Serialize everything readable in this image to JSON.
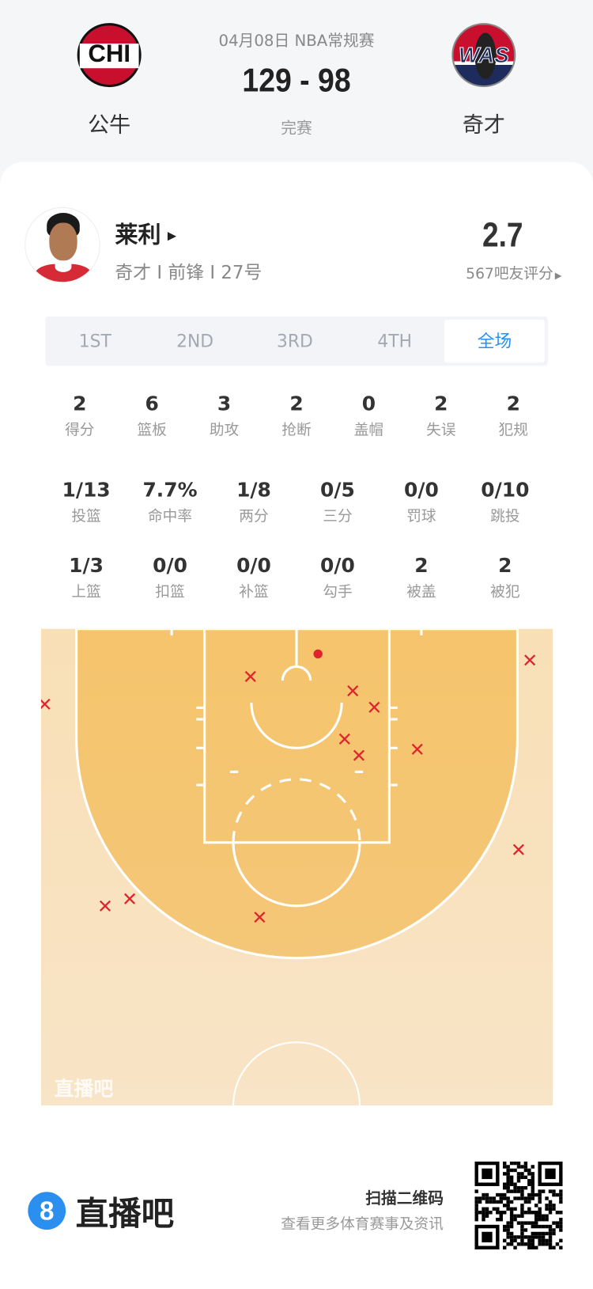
{
  "match": {
    "date_league": "04月08日 NBA常规赛",
    "score": "129 - 98",
    "status": "完赛",
    "home": {
      "abbr": "CHI",
      "name": "公牛",
      "color": "#ce1141"
    },
    "away": {
      "abbr": "WAS",
      "name": "奇才",
      "color": "#002b5c"
    }
  },
  "player": {
    "name": "莱利",
    "subtitle": "奇才 I 前锋 I 27号",
    "rating": "2.7",
    "rating_label": "567吧友评分"
  },
  "tabs": [
    {
      "label": "1ST",
      "active": false
    },
    {
      "label": "2ND",
      "active": false
    },
    {
      "label": "3RD",
      "active": false
    },
    {
      "label": "4TH",
      "active": false
    },
    {
      "label": "全场",
      "active": true
    }
  ],
  "stats_main": [
    {
      "value": "2",
      "label": "得分"
    },
    {
      "value": "6",
      "label": "篮板"
    },
    {
      "value": "3",
      "label": "助攻"
    },
    {
      "value": "2",
      "label": "抢断"
    },
    {
      "value": "0",
      "label": "盖帽"
    },
    {
      "value": "2",
      "label": "失误"
    },
    {
      "value": "2",
      "label": "犯规"
    }
  ],
  "stats_shooting": [
    {
      "value": "1/13",
      "label": "投篮"
    },
    {
      "value": "7.7%",
      "label": "命中率"
    },
    {
      "value": "1/8",
      "label": "两分"
    },
    {
      "value": "0/5",
      "label": "三分"
    },
    {
      "value": "0/0",
      "label": "罚球"
    },
    {
      "value": "0/10",
      "label": "跳投"
    }
  ],
  "stats_other": [
    {
      "value": "1/3",
      "label": "上篮"
    },
    {
      "value": "0/0",
      "label": "扣篮"
    },
    {
      "value": "0/0",
      "label": "补篮"
    },
    {
      "value": "0/0",
      "label": "勾手"
    },
    {
      "value": "2",
      "label": "被盖"
    },
    {
      "value": "2",
      "label": "被犯"
    }
  ],
  "shot_chart": {
    "units": "feet from basket",
    "made_color": "#e0242f",
    "miss_color": "#e0242f",
    "watermark": "直播吧",
    "shots": [
      {
        "x": 2.1,
        "y": -2.6,
        "made": true
      },
      {
        "x": -4.5,
        "y": -0.4,
        "made": false
      },
      {
        "x": -24.6,
        "y": 2.3,
        "made": false
      },
      {
        "x": 5.5,
        "y": 1.0,
        "made": false
      },
      {
        "x": 7.6,
        "y": 2.6,
        "made": false
      },
      {
        "x": 4.7,
        "y": 5.7,
        "made": false
      },
      {
        "x": 6.1,
        "y": 7.3,
        "made": false
      },
      {
        "x": 11.8,
        "y": 6.7,
        "made": false
      },
      {
        "x": 22.8,
        "y": -2.0,
        "made": false
      },
      {
        "x": 21.7,
        "y": 16.5,
        "made": false
      },
      {
        "x": -18.7,
        "y": 22.0,
        "made": false
      },
      {
        "x": -16.3,
        "y": 21.3,
        "made": false
      },
      {
        "x": -3.6,
        "y": 23.1,
        "made": false
      }
    ]
  },
  "footer": {
    "brand": "直播吧",
    "brand_color": "#2b8ff0",
    "qr_title": "扫描二维码",
    "qr_subtitle": "查看更多体育赛事及资讯"
  }
}
